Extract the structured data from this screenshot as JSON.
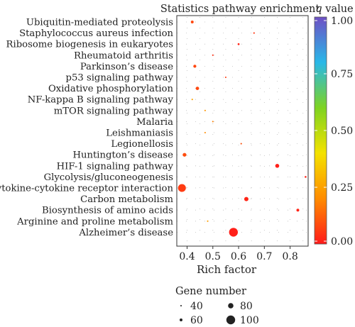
{
  "chart_data": {
    "type": "scatter",
    "title": "Statistics pathway enrichment",
    "xlabel": "Rich factor",
    "xlim": [
      0.36,
      0.87
    ],
    "x_ticks": [
      0.4,
      0.5,
      0.6,
      0.7,
      0.8
    ],
    "x_tick_labels": [
      "0.4",
      "0.5",
      "0.6",
      "0.7",
      "0.8"
    ],
    "grid": true,
    "categories": [
      "Ubiquitin-mediated proteolysis",
      "Staphylococcus aureus infection",
      "Ribosome biogenesis in eukaryotes",
      "Rheumatoid arthritis",
      "Parkinson’s disease",
      "p53 signaling pathway",
      "Oxidative phosphorylation",
      "NF-kappa B signaling pathway",
      "mTOR signaling pathway",
      "Malaria",
      "Leishmaniasis",
      "Legionellosis",
      "Huntington’s disease",
      "HIF-1 signaling pathway",
      "Glycolysis/gluconeogenesis",
      "Cytokine-cytokine receptor interaction",
      "Carbon metabolism",
      "Biosynthesis of amino acids",
      "Arginine and proline metabolism",
      "Alzheimer’s disease"
    ],
    "points": [
      {
        "pathway": "Ubiquitin-mediated proteolysis",
        "rich_factor": 0.42,
        "gene_number": 60,
        "q_value": 0.08
      },
      {
        "pathway": "Staphylococcus aureus infection",
        "rich_factor": 0.66,
        "gene_number": 42,
        "q_value": 0.05
      },
      {
        "pathway": "Ribosome biogenesis in eukaryotes",
        "rich_factor": 0.6,
        "gene_number": 50,
        "q_value": 0.02
      },
      {
        "pathway": "Rheumatoid arthritis",
        "rich_factor": 0.5,
        "gene_number": 42,
        "q_value": 0.04
      },
      {
        "pathway": "Parkinson’s disease",
        "rich_factor": 0.43,
        "gene_number": 62,
        "q_value": 0.08
      },
      {
        "pathway": "p53 signaling pathway",
        "rich_factor": 0.55,
        "gene_number": 41,
        "q_value": 0.06
      },
      {
        "pathway": "Oxidative phosphorylation",
        "rich_factor": 0.44,
        "gene_number": 65,
        "q_value": 0.08
      },
      {
        "pathway": "NF-kappa B signaling pathway",
        "rich_factor": 0.42,
        "gene_number": 42,
        "q_value": 0.25
      },
      {
        "pathway": "mTOR signaling pathway",
        "rich_factor": 0.47,
        "gene_number": 41,
        "q_value": 0.22
      },
      {
        "pathway": "Malaria",
        "rich_factor": 0.5,
        "gene_number": 40,
        "q_value": 0.18
      },
      {
        "pathway": "Leishmaniasis",
        "rich_factor": 0.47,
        "gene_number": 41,
        "q_value": 0.2
      },
      {
        "pathway": "Legionellosis",
        "rich_factor": 0.61,
        "gene_number": 41,
        "q_value": 0.1
      },
      {
        "pathway": "Huntington’s disease",
        "rich_factor": 0.39,
        "gene_number": 68,
        "q_value": 0.09
      },
      {
        "pathway": "HIF-1 signaling pathway",
        "rich_factor": 0.75,
        "gene_number": 70,
        "q_value": 0.01
      },
      {
        "pathway": "Glycolysis/gluconeogenesis",
        "rich_factor": 0.86,
        "gene_number": 48,
        "q_value": 0.02
      },
      {
        "pathway": "Cytokine-cytokine receptor interaction",
        "rich_factor": 0.38,
        "gene_number": 95,
        "q_value": 0.06
      },
      {
        "pathway": "Carbon metabolism",
        "rich_factor": 0.63,
        "gene_number": 72,
        "q_value": 0.02
      },
      {
        "pathway": "Biosynthesis of amino acids",
        "rich_factor": 0.83,
        "gene_number": 60,
        "q_value": 0.02
      },
      {
        "pathway": "Arginine and proline metabolism",
        "rich_factor": 0.48,
        "gene_number": 41,
        "q_value": 0.24
      },
      {
        "pathway": "Alzheimer’s disease",
        "rich_factor": 0.58,
        "gene_number": 100,
        "q_value": 0.01
      }
    ],
    "colorbar": {
      "label_italic": "q",
      "label_rest": " value",
      "range": [
        0,
        1
      ],
      "ticks": [
        0,
        0.25,
        0.5,
        0.75,
        1
      ],
      "tick_labels": [
        "0.00",
        "0.25",
        "0.50",
        "0.75",
        "1.00"
      ],
      "colors": [
        "#ff1a1a",
        "#ff8c00",
        "#f4e200",
        "#7ed321",
        "#29b8e8",
        "#6e4fc4"
      ]
    },
    "size_legend": {
      "title": "Gene number",
      "entries": [
        {
          "value": 40,
          "label": "40"
        },
        {
          "value": 60,
          "label": "60"
        },
        {
          "value": 80,
          "label": "80"
        },
        {
          "value": 100,
          "label": "100"
        }
      ]
    }
  }
}
